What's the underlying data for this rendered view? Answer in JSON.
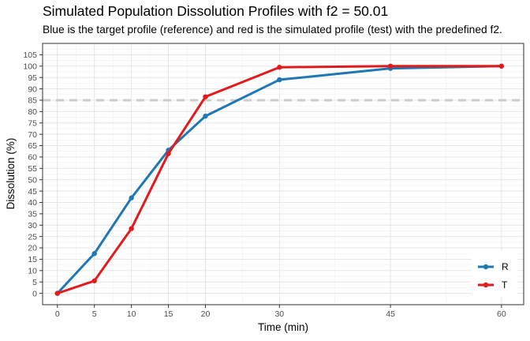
{
  "chart_data": {
    "type": "line",
    "title": "Simulated Population Dissolution Profiles with f2 = 50.01",
    "subtitle": "Blue is the target profile (reference) and red is the simulated profile (test) with the predefined f2.",
    "xlabel": "Time (min)",
    "ylabel": "Dissolution (%)",
    "x": [
      0,
      5,
      10,
      15,
      20,
      30,
      45,
      60
    ],
    "xticks": [
      "0",
      "5",
      "10",
      "15",
      "20",
      "30",
      "45",
      "60"
    ],
    "xlim": [
      -2,
      63
    ],
    "ylim": [
      -5,
      110
    ],
    "yticks": [
      "0",
      "5",
      "10",
      "15",
      "20",
      "25",
      "30",
      "35",
      "40",
      "45",
      "50",
      "55",
      "60",
      "65",
      "70",
      "75",
      "80",
      "85",
      "90",
      "95",
      "100",
      "105"
    ],
    "reference_line": {
      "y": 85,
      "style": "dashed",
      "color": "#cccccc"
    },
    "grid": true,
    "legend_position": "bottom-right",
    "series": [
      {
        "name": "R",
        "color": "#1f78b4",
        "values": [
          0,
          17.5,
          42,
          63,
          78,
          94,
          99,
          100
        ]
      },
      {
        "name": "T",
        "color": "#e31a1c",
        "values": [
          0,
          5.5,
          28.5,
          61.5,
          86.5,
          99.5,
          100,
          100
        ]
      }
    ]
  }
}
